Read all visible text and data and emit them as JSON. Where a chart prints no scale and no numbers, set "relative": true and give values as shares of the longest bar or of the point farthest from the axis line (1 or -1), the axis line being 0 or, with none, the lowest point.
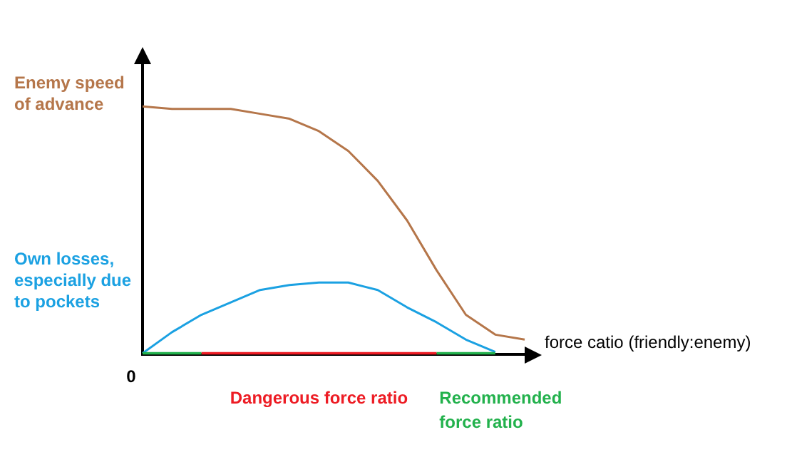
{
  "chart_data": {
    "type": "line",
    "relative": true,
    "xlabel": "force catio (friendly:enemy)",
    "annotations": [
      "0"
    ],
    "legend": false,
    "marker": "none",
    "categories": [
      null,
      null,
      null,
      null,
      null,
      null,
      null,
      null,
      null,
      null,
      null,
      null,
      null,
      null
    ],
    "series": [
      {
        "name": "Enemy speed of advance",
        "color": "#b5764a",
        "values": [
          1,
          0.99,
          0.99,
          0.99,
          0.97,
          0.95,
          0.9,
          0.82,
          0.7,
          0.54,
          0.34,
          0.16,
          0.08,
          0.06
        ]
      },
      {
        "name": "Own losses, especially due to pockets",
        "color": "#1ba1e2",
        "values": [
          0.005,
          0.09,
          0.16,
          0.21,
          0.26,
          0.28,
          0.29,
          0.29,
          0.26,
          0.19,
          0.13,
          0.06,
          0.01,
          null
        ]
      },
      {
        "color": "#22b14c",
        "values": [
          0,
          0,
          0,
          null,
          null,
          null,
          null,
          null,
          null,
          null,
          null,
          null,
          null,
          null
        ]
      },
      {
        "name": "Dangerous force ratio",
        "color": "#ed1c24",
        "values": [
          null,
          null,
          0,
          0,
          0,
          0,
          0,
          0,
          0,
          0,
          0,
          null,
          null,
          null
        ]
      },
      {
        "name": "Recommended force ratio",
        "color": "#22b14c",
        "values": [
          null,
          null,
          null,
          null,
          null,
          null,
          null,
          null,
          null,
          null,
          0,
          0,
          0,
          null
        ]
      }
    ]
  }
}
